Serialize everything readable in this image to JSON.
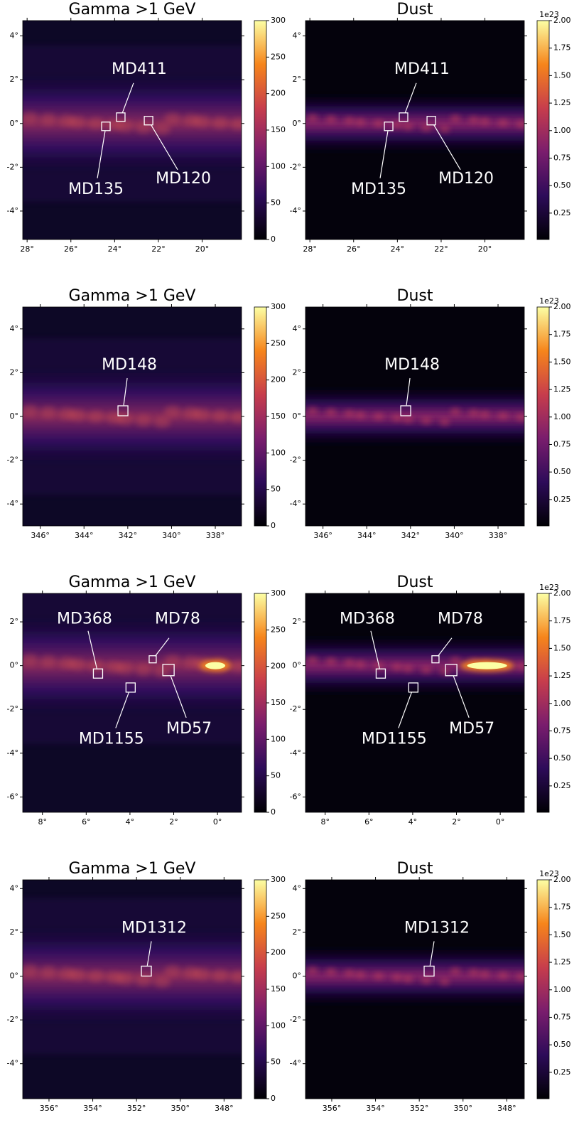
{
  "chart_data": [
    {
      "type": "heatmap",
      "title": "Gamma >1 GeV",
      "xlim": [
        28.2,
        18.2
      ],
      "xticks": [
        {
          "value": 28,
          "label": "28°"
        },
        {
          "value": 26,
          "label": "26°"
        },
        {
          "value": 24,
          "label": "24°"
        },
        {
          "value": 22,
          "label": "22°"
        },
        {
          "value": 20,
          "label": "20°"
        }
      ],
      "ylim": [
        -5.3,
        4.7
      ],
      "yticks": [
        {
          "value": 4,
          "label": "4°"
        },
        {
          "value": 2,
          "label": "2°"
        },
        {
          "value": 0,
          "label": "0°"
        },
        {
          "value": -2,
          "label": "-2°"
        },
        {
          "value": -4,
          "label": "-4°"
        }
      ],
      "colorbar": {
        "lim": [
          0,
          300
        ],
        "ticks": [
          0,
          50,
          100,
          150,
          200,
          250,
          300
        ]
      },
      "annotations": [
        {
          "text": "MD411",
          "x": 23.72,
          "y": 0.29
        },
        {
          "text": "MD135",
          "x": 24.4,
          "y": -0.13
        },
        {
          "text": "MD120",
          "x": 22.45,
          "y": 0.13
        }
      ]
    },
    {
      "type": "heatmap",
      "title": "Dust",
      "xlim": [
        28.2,
        18.2
      ],
      "xticks": [
        {
          "value": 28,
          "label": "28°"
        },
        {
          "value": 26,
          "label": "26°"
        },
        {
          "value": 24,
          "label": "24°"
        },
        {
          "value": 22,
          "label": "22°"
        },
        {
          "value": 20,
          "label": "20°"
        }
      ],
      "ylim": [
        -5.3,
        4.7
      ],
      "yticks": [
        {
          "value": 4,
          "label": "4°"
        },
        {
          "value": 2,
          "label": "2°"
        },
        {
          "value": 0,
          "label": "0°"
        },
        {
          "value": -2,
          "label": "-2°"
        },
        {
          "value": -4,
          "label": "-4°"
        }
      ],
      "colorbar": {
        "lim": [
          0.01,
          2.0
        ],
        "offset_label": "1e23",
        "ticks": [
          {
            "value": 0.25,
            "label": "0.25"
          },
          {
            "value": 0.5,
            "label": "0.50"
          },
          {
            "value": 0.75,
            "label": "0.75"
          },
          {
            "value": 1,
            "label": "1.00"
          },
          {
            "value": 1.25,
            "label": "1.25"
          },
          {
            "value": 1.5,
            "label": "1.50"
          },
          {
            "value": 1.75,
            "label": "1.75"
          },
          {
            "value": 2,
            "label": "2.00"
          }
        ]
      },
      "annotations": [
        {
          "text": "MD411",
          "x": 23.72,
          "y": 0.29
        },
        {
          "text": "MD135",
          "x": 24.4,
          "y": -0.13
        },
        {
          "text": "MD120",
          "x": 22.45,
          "y": 0.13
        }
      ]
    },
    {
      "type": "heatmap",
      "title": "Gamma >1 GeV",
      "xlim": [
        346.8,
        336.8
      ],
      "xticks": [
        {
          "value": 346,
          "label": "346°"
        },
        {
          "value": 344,
          "label": "344°"
        },
        {
          "value": 342,
          "label": "342°"
        },
        {
          "value": 340,
          "label": "340°"
        },
        {
          "value": 338,
          "label": "338°"
        }
      ],
      "ylim": [
        -5,
        5
      ],
      "yticks": [
        {
          "value": 4,
          "label": "4°"
        },
        {
          "value": 2,
          "label": "2°"
        },
        {
          "value": 0,
          "label": "0°"
        },
        {
          "value": -2,
          "label": "-2°"
        },
        {
          "value": -4,
          "label": "-4°"
        }
      ],
      "colorbar": {
        "lim": [
          0,
          300
        ],
        "ticks": [
          0,
          50,
          100,
          150,
          200,
          250,
          300
        ]
      },
      "annotations": [
        {
          "text": "MD148",
          "x": 342.22,
          "y": 0.26
        }
      ]
    },
    {
      "type": "heatmap",
      "title": "Dust",
      "xlim": [
        346.8,
        336.8
      ],
      "xticks": [
        {
          "value": 346,
          "label": "346°"
        },
        {
          "value": 344,
          "label": "344°"
        },
        {
          "value": 342,
          "label": "342°"
        },
        {
          "value": 340,
          "label": "340°"
        },
        {
          "value": 338,
          "label": "338°"
        }
      ],
      "ylim": [
        -5,
        5
      ],
      "yticks": [
        {
          "value": 4,
          "label": "4°"
        },
        {
          "value": 2,
          "label": "2°"
        },
        {
          "value": 0,
          "label": "0°"
        },
        {
          "value": -2,
          "label": "-2°"
        },
        {
          "value": -4,
          "label": "-4°"
        }
      ],
      "colorbar": {
        "lim": [
          0.01,
          2.0
        ],
        "offset_label": "1e23",
        "ticks": [
          {
            "value": 0.25,
            "label": "0.25"
          },
          {
            "value": 0.5,
            "label": "0.50"
          },
          {
            "value": 0.75,
            "label": "0.75"
          },
          {
            "value": 1,
            "label": "1.00"
          },
          {
            "value": 1.25,
            "label": "1.25"
          },
          {
            "value": 1.5,
            "label": "1.50"
          },
          {
            "value": 1.75,
            "label": "1.75"
          },
          {
            "value": 2,
            "label": "2.00"
          }
        ]
      },
      "annotations": [
        {
          "text": "MD148",
          "x": 342.22,
          "y": 0.26
        }
      ]
    },
    {
      "type": "heatmap",
      "title": "Gamma >1 GeV",
      "xlim": [
        8.9,
        -1.1
      ],
      "xticks": [
        {
          "value": 8,
          "label": "8°"
        },
        {
          "value": 6,
          "label": "6°"
        },
        {
          "value": 4,
          "label": "4°"
        },
        {
          "value": 2,
          "label": "2°"
        },
        {
          "value": 0,
          "label": "0°"
        }
      ],
      "ylim": [
        -6.7,
        3.3
      ],
      "yticks": [
        {
          "value": 2,
          "label": "2°"
        },
        {
          "value": 0,
          "label": "0°"
        },
        {
          "value": -2,
          "label": "-2°"
        },
        {
          "value": -4,
          "label": "-4°"
        },
        {
          "value": -6,
          "label": "-6°"
        }
      ],
      "colorbar": {
        "lim": [
          0,
          300
        ],
        "ticks": [
          0,
          50,
          100,
          150,
          200,
          250,
          300
        ]
      },
      "annotations": [
        {
          "text": "MD368",
          "x": 5.46,
          "y": -0.36
        },
        {
          "text": "MD78",
          "x": 2.96,
          "y": 0.29
        },
        {
          "text": "MD1155",
          "x": 3.97,
          "y": -1.0
        },
        {
          "text": "MD57",
          "x": 2.24,
          "y": -0.2
        }
      ]
    },
    {
      "type": "heatmap",
      "title": "Dust",
      "xlim": [
        8.9,
        -1.1
      ],
      "xticks": [
        {
          "value": 8,
          "label": "8°"
        },
        {
          "value": 6,
          "label": "6°"
        },
        {
          "value": 4,
          "label": "4°"
        },
        {
          "value": 2,
          "label": "2°"
        },
        {
          "value": 0,
          "label": "0°"
        }
      ],
      "ylim": [
        -6.7,
        3.3
      ],
      "yticks": [
        {
          "value": 2,
          "label": "2°"
        },
        {
          "value": 0,
          "label": "0°"
        },
        {
          "value": -2,
          "label": "-2°"
        },
        {
          "value": -4,
          "label": "-4°"
        },
        {
          "value": -6,
          "label": "-6°"
        }
      ],
      "colorbar": {
        "lim": [
          0.01,
          2.0
        ],
        "offset_label": "1e23",
        "ticks": [
          {
            "value": 0.25,
            "label": "0.25"
          },
          {
            "value": 0.5,
            "label": "0.50"
          },
          {
            "value": 0.75,
            "label": "0.75"
          },
          {
            "value": 1,
            "label": "1.00"
          },
          {
            "value": 1.25,
            "label": "1.25"
          },
          {
            "value": 1.5,
            "label": "1.50"
          },
          {
            "value": 1.75,
            "label": "1.75"
          },
          {
            "value": 2,
            "label": "2.00"
          }
        ]
      },
      "annotations": [
        {
          "text": "MD368",
          "x": 5.46,
          "y": -0.36
        },
        {
          "text": "MD78",
          "x": 2.96,
          "y": 0.29
        },
        {
          "text": "MD1155",
          "x": 3.97,
          "y": -1.0
        },
        {
          "text": "MD57",
          "x": 2.24,
          "y": -0.2
        }
      ]
    },
    {
      "type": "heatmap",
      "title": "Gamma >1 GeV",
      "xlim": [
        357.2,
        347.2
      ],
      "xticks": [
        {
          "value": 356,
          "label": "356°"
        },
        {
          "value": 354,
          "label": "354°"
        },
        {
          "value": 352,
          "label": "352°"
        },
        {
          "value": 350,
          "label": "350°"
        },
        {
          "value": 348,
          "label": "348°"
        }
      ],
      "ylim": [
        -5.6,
        4.4
      ],
      "yticks": [
        {
          "value": 4,
          "label": "4°"
        },
        {
          "value": 2,
          "label": "2°"
        },
        {
          "value": 0,
          "label": "0°"
        },
        {
          "value": -2,
          "label": "-2°"
        },
        {
          "value": -4,
          "label": "-4°"
        }
      ],
      "colorbar": {
        "lim": [
          0,
          300
        ],
        "ticks": [
          0,
          50,
          100,
          150,
          200,
          250,
          300
        ]
      },
      "annotations": [
        {
          "text": "MD1312",
          "x": 351.55,
          "y": 0.23
        }
      ]
    },
    {
      "type": "heatmap",
      "title": "Dust",
      "xlim": [
        357.2,
        347.2
      ],
      "xticks": [
        {
          "value": 356,
          "label": "356°"
        },
        {
          "value": 354,
          "label": "354°"
        },
        {
          "value": 352,
          "label": "352°"
        },
        {
          "value": 350,
          "label": "350°"
        },
        {
          "value": 348,
          "label": "348°"
        }
      ],
      "ylim": [
        -5.6,
        4.4
      ],
      "yticks": [
        {
          "value": 4,
          "label": "4°"
        },
        {
          "value": 2,
          "label": "2°"
        },
        {
          "value": 0,
          "label": "0°"
        },
        {
          "value": -2,
          "label": "-2°"
        },
        {
          "value": -4,
          "label": "-4°"
        }
      ],
      "colorbar": {
        "lim": [
          0.01,
          2.0
        ],
        "offset_label": "1e23",
        "ticks": [
          {
            "value": 0.25,
            "label": "0.25"
          },
          {
            "value": 0.5,
            "label": "0.50"
          },
          {
            "value": 0.75,
            "label": "0.75"
          },
          {
            "value": 1,
            "label": "1.00"
          },
          {
            "value": 1.25,
            "label": "1.25"
          },
          {
            "value": 1.5,
            "label": "1.50"
          },
          {
            "value": 1.75,
            "label": "1.75"
          },
          {
            "value": 2,
            "label": "2.00"
          }
        ]
      },
      "annotations": [
        {
          "text": "MD1312",
          "x": 351.55,
          "y": 0.23
        }
      ]
    }
  ]
}
